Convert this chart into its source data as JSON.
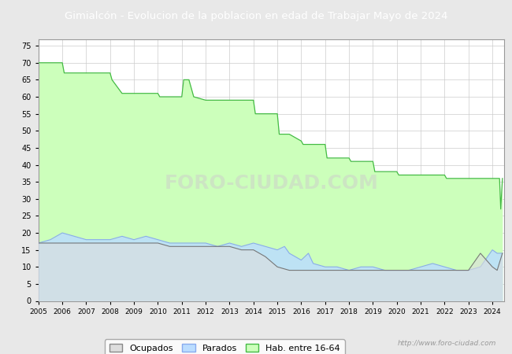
{
  "title": "Gimialcón - Evolucion de la poblacion en edad de Trabajar Mayo de 2024",
  "title_color": "#ffffff",
  "title_bg_color": "#4c7ec9",
  "watermark": "http://www.foro-ciudad.com",
  "legend_labels": [
    "Ocupados",
    "Parados",
    "Hab. entre 16-64"
  ],
  "background_color": "#e8e8e8",
  "plot_bg_color": "#ffffff",
  "grid_color": "#cccccc",
  "ylim": [
    0,
    77
  ],
  "yticks": [
    0,
    5,
    10,
    15,
    20,
    25,
    30,
    35,
    40,
    45,
    50,
    55,
    60,
    65,
    70,
    75
  ],
  "hab_color": "#ccffbb",
  "hab_line_color": "#44bb44",
  "parados_color": "#bbddff",
  "parados_line_color": "#88aaee",
  "ocupados_color": "#bbbbbb",
  "ocupados_fill_color": "#dddddd",
  "hab_data": [
    [
      2005.0,
      70
    ],
    [
      2005.08,
      70
    ],
    [
      2006.0,
      70
    ],
    [
      2006.08,
      67
    ],
    [
      2006.5,
      67
    ],
    [
      2007.0,
      67
    ],
    [
      2007.08,
      67
    ],
    [
      2008.0,
      67
    ],
    [
      2008.08,
      65
    ],
    [
      2008.5,
      61
    ],
    [
      2009.0,
      61
    ],
    [
      2009.08,
      61
    ],
    [
      2010.0,
      61
    ],
    [
      2010.08,
      60
    ],
    [
      2010.5,
      60
    ],
    [
      2011.0,
      60
    ],
    [
      2011.08,
      65
    ],
    [
      2011.3,
      65
    ],
    [
      2011.5,
      60
    ],
    [
      2012.0,
      59
    ],
    [
      2012.08,
      59
    ],
    [
      2013.0,
      59
    ],
    [
      2013.08,
      59
    ],
    [
      2014.0,
      59
    ],
    [
      2014.08,
      55
    ],
    [
      2015.0,
      55
    ],
    [
      2015.08,
      49
    ],
    [
      2015.5,
      49
    ],
    [
      2016.0,
      47
    ],
    [
      2016.08,
      46
    ],
    [
      2017.0,
      46
    ],
    [
      2017.08,
      42
    ],
    [
      2018.0,
      42
    ],
    [
      2018.08,
      41
    ],
    [
      2019.0,
      41
    ],
    [
      2019.08,
      38
    ],
    [
      2020.0,
      38
    ],
    [
      2020.08,
      37
    ],
    [
      2021.0,
      37
    ],
    [
      2021.08,
      37
    ],
    [
      2022.0,
      37
    ],
    [
      2022.08,
      36
    ],
    [
      2023.0,
      36
    ],
    [
      2023.08,
      36
    ],
    [
      2024.0,
      36
    ],
    [
      2024.3,
      36
    ],
    [
      2024.35,
      27
    ],
    [
      2024.42,
      36
    ]
  ],
  "parados_data": [
    [
      2005.0,
      17
    ],
    [
      2005.5,
      18
    ],
    [
      2006.0,
      20
    ],
    [
      2006.5,
      19
    ],
    [
      2007.0,
      18
    ],
    [
      2007.5,
      18
    ],
    [
      2008.0,
      18
    ],
    [
      2008.5,
      19
    ],
    [
      2009.0,
      18
    ],
    [
      2009.5,
      19
    ],
    [
      2010.0,
      18
    ],
    [
      2010.5,
      17
    ],
    [
      2011.0,
      17
    ],
    [
      2011.5,
      17
    ],
    [
      2012.0,
      17
    ],
    [
      2012.5,
      16
    ],
    [
      2013.0,
      17
    ],
    [
      2013.5,
      16
    ],
    [
      2014.0,
      17
    ],
    [
      2014.5,
      16
    ],
    [
      2015.0,
      15
    ],
    [
      2015.3,
      16
    ],
    [
      2015.5,
      14
    ],
    [
      2016.0,
      12
    ],
    [
      2016.3,
      14
    ],
    [
      2016.5,
      11
    ],
    [
      2017.0,
      10
    ],
    [
      2017.5,
      10
    ],
    [
      2018.0,
      9
    ],
    [
      2018.5,
      10
    ],
    [
      2019.0,
      10
    ],
    [
      2019.5,
      9
    ],
    [
      2020.0,
      9
    ],
    [
      2020.5,
      9
    ],
    [
      2021.0,
      10
    ],
    [
      2021.5,
      11
    ],
    [
      2022.0,
      10
    ],
    [
      2022.5,
      9
    ],
    [
      2023.0,
      9
    ],
    [
      2023.5,
      10
    ],
    [
      2024.0,
      15
    ],
    [
      2024.2,
      14
    ],
    [
      2024.42,
      14
    ]
  ],
  "ocupados_data": [
    [
      2005.0,
      17
    ],
    [
      2005.5,
      17
    ],
    [
      2006.0,
      17
    ],
    [
      2006.5,
      17
    ],
    [
      2007.0,
      17
    ],
    [
      2007.5,
      17
    ],
    [
      2008.0,
      17
    ],
    [
      2008.5,
      17
    ],
    [
      2009.0,
      17
    ],
    [
      2009.5,
      17
    ],
    [
      2010.0,
      17
    ],
    [
      2010.5,
      16
    ],
    [
      2011.0,
      16
    ],
    [
      2011.5,
      16
    ],
    [
      2012.0,
      16
    ],
    [
      2012.5,
      16
    ],
    [
      2013.0,
      16
    ],
    [
      2013.5,
      15
    ],
    [
      2014.0,
      15
    ],
    [
      2014.5,
      13
    ],
    [
      2015.0,
      10
    ],
    [
      2015.5,
      9
    ],
    [
      2016.0,
      9
    ],
    [
      2016.5,
      9
    ],
    [
      2017.0,
      9
    ],
    [
      2017.5,
      9
    ],
    [
      2018.0,
      9
    ],
    [
      2018.5,
      9
    ],
    [
      2019.0,
      9
    ],
    [
      2019.5,
      9
    ],
    [
      2020.0,
      9
    ],
    [
      2020.5,
      9
    ],
    [
      2021.0,
      9
    ],
    [
      2021.5,
      9
    ],
    [
      2022.0,
      9
    ],
    [
      2022.5,
      9
    ],
    [
      2023.0,
      9
    ],
    [
      2023.5,
      14
    ],
    [
      2024.0,
      10
    ],
    [
      2024.2,
      9
    ],
    [
      2024.42,
      14
    ]
  ]
}
